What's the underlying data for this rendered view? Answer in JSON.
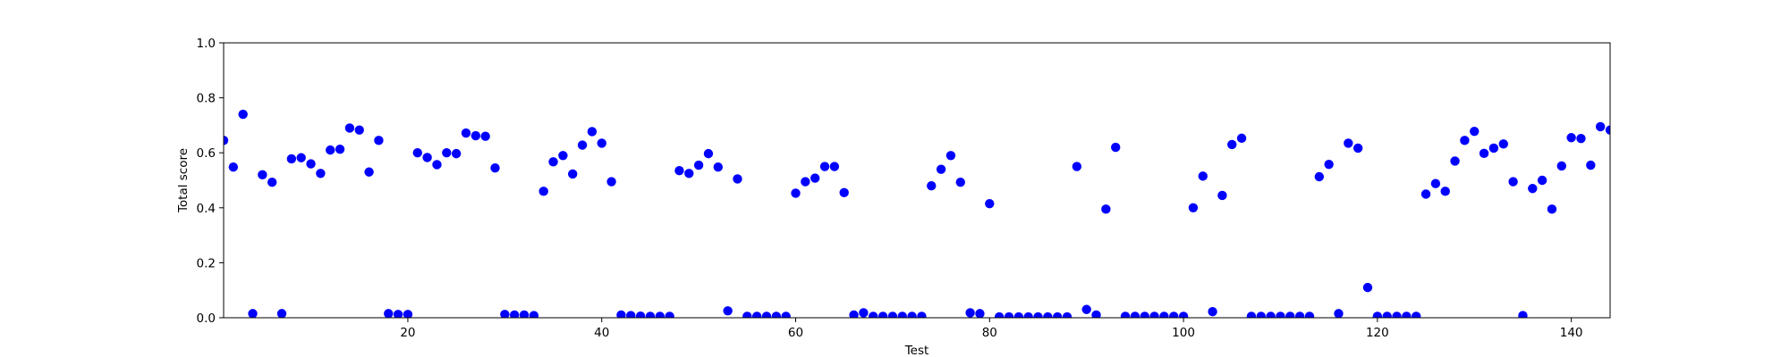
{
  "chart_data": {
    "type": "scatter",
    "xlabel": "Test",
    "ylabel": "Total score",
    "xlim": [
      1,
      144
    ],
    "ylim": [
      0.0,
      1.0
    ],
    "x_ticks": [
      20,
      40,
      60,
      80,
      100,
      120,
      140
    ],
    "x_tick_labels": [
      "20",
      "40",
      "60",
      "80",
      "100",
      "120",
      "140"
    ],
    "y_ticks": [
      0.0,
      0.2,
      0.4,
      0.6,
      0.8,
      1.0
    ],
    "y_tick_labels": [
      "0.0",
      "0.2",
      "0.4",
      "0.6",
      "0.8",
      "1.0"
    ],
    "grid": false,
    "marker_color": "#0000ff",
    "x": [
      1,
      2,
      3,
      4,
      5,
      6,
      7,
      8,
      9,
      10,
      11,
      12,
      13,
      14,
      15,
      16,
      17,
      18,
      19,
      20,
      21,
      22,
      23,
      24,
      25,
      26,
      27,
      28,
      29,
      30,
      31,
      32,
      33,
      34,
      35,
      36,
      37,
      38,
      39,
      40,
      41,
      42,
      43,
      44,
      45,
      46,
      47,
      48,
      49,
      50,
      51,
      52,
      53,
      54,
      55,
      56,
      57,
      58,
      59,
      60,
      61,
      62,
      63,
      64,
      65,
      66,
      67,
      68,
      69,
      70,
      71,
      72,
      73,
      74,
      75,
      76,
      77,
      78,
      79,
      80,
      81,
      82,
      83,
      84,
      85,
      86,
      87,
      88,
      89,
      90,
      91,
      92,
      93,
      94,
      95,
      96,
      97,
      98,
      99,
      100,
      101,
      102,
      103,
      104,
      105,
      106,
      107,
      108,
      109,
      110,
      111,
      112,
      113,
      114,
      115,
      116,
      117,
      118,
      119,
      120,
      121,
      122,
      123,
      124,
      125,
      126,
      127,
      128,
      129,
      130,
      131,
      132,
      133,
      134,
      135,
      136,
      137,
      138,
      139,
      140,
      141,
      142,
      143,
      144
    ],
    "y": [
      0.645,
      0.548,
      0.74,
      0.015,
      0.52,
      0.493,
      0.015,
      0.578,
      0.582,
      0.56,
      0.525,
      0.61,
      0.613,
      0.69,
      0.683,
      0.53,
      0.645,
      0.015,
      0.012,
      0.012,
      0.6,
      0.583,
      0.557,
      0.6,
      0.597,
      0.672,
      0.662,
      0.66,
      0.545,
      0.012,
      0.01,
      0.01,
      0.008,
      0.46,
      0.567,
      0.59,
      0.523,
      0.628,
      0.677,
      0.635,
      0.495,
      0.01,
      0.008,
      0.006,
      0.005,
      0.005,
      0.005,
      0.535,
      0.525,
      0.555,
      0.597,
      0.548,
      0.025,
      0.505,
      0.005,
      0.005,
      0.005,
      0.005,
      0.005,
      0.453,
      0.495,
      0.508,
      0.55,
      0.55,
      0.455,
      0.01,
      0.018,
      0.005,
      0.005,
      0.005,
      0.005,
      0.005,
      0.005,
      0.48,
      0.54,
      0.59,
      0.493,
      0.018,
      0.015,
      0.415,
      0.003,
      0.003,
      0.003,
      0.003,
      0.003,
      0.003,
      0.003,
      0.003,
      0.55,
      0.03,
      0.01,
      0.395,
      0.62,
      0.005,
      0.005,
      0.005,
      0.005,
      0.005,
      0.005,
      0.005,
      0.4,
      0.515,
      0.022,
      0.445,
      0.63,
      0.653,
      0.005,
      0.005,
      0.005,
      0.005,
      0.005,
      0.005,
      0.005,
      0.513,
      0.558,
      0.015,
      0.635,
      0.617,
      0.11,
      0.005,
      0.005,
      0.005,
      0.005,
      0.005,
      0.45,
      0.488,
      0.46,
      0.57,
      0.645,
      0.678,
      0.598,
      0.617,
      0.632,
      0.495,
      0.008,
      0.47,
      0.5,
      0.395,
      0.552,
      0.655,
      0.652,
      0.555,
      0.695,
      0.683
    ]
  }
}
